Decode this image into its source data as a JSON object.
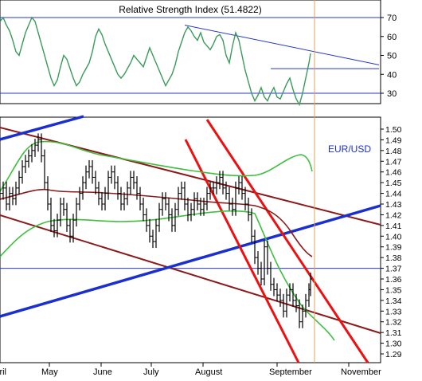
{
  "chart_data": [
    {
      "type": "line",
      "title": "Relative Strength Index (51.4822)",
      "y_ticks": [
        30,
        40,
        50,
        60,
        70
      ],
      "ylim": [
        24,
        76
      ],
      "reference_lines": [
        70,
        30
      ],
      "series_color": "#3a9a5a",
      "series": [
        {
          "x": [
            0,
            4,
            8,
            12,
            16,
            20,
            24,
            28,
            32,
            36,
            40,
            44,
            48,
            52,
            56,
            60,
            64,
            68,
            72,
            76,
            80,
            84,
            88,
            92,
            96,
            100,
            104,
            108,
            112,
            116,
            120,
            124,
            128,
            132,
            136,
            140,
            144,
            148,
            152,
            156,
            160,
            164,
            168,
            172,
            176,
            180,
            184,
            188,
            192,
            196,
            200,
            204,
            208,
            212,
            216,
            220,
            224,
            228,
            232,
            236,
            240,
            244,
            248,
            252,
            256,
            260,
            264,
            268,
            272,
            276,
            280,
            284,
            288,
            292,
            296,
            300,
            304,
            308,
            312,
            316,
            320,
            324,
            328,
            332,
            336,
            340,
            344,
            348,
            352,
            356,
            360,
            364,
            368,
            372,
            376,
            380,
            384,
            388,
            390
          ],
          "values": [
            68,
            70,
            66,
            63,
            58,
            52,
            50,
            56,
            62,
            66,
            70,
            68,
            62,
            56,
            50,
            44,
            38,
            34,
            37,
            44,
            50,
            48,
            43,
            38,
            34,
            36,
            40,
            43,
            46,
            52,
            60,
            64,
            61,
            56,
            52,
            48,
            44,
            40,
            38,
            40,
            43,
            46,
            50,
            48,
            46,
            44,
            49,
            54,
            50,
            46,
            42,
            38,
            34,
            37,
            40,
            45,
            52,
            57,
            62,
            65,
            63,
            60,
            58,
            62,
            57,
            55,
            53,
            56,
            60,
            61,
            58,
            50,
            46,
            55,
            62,
            58,
            50,
            42,
            36,
            30,
            26,
            29,
            33,
            28,
            26,
            30,
            33,
            28,
            27,
            31,
            35,
            38,
            32,
            27,
            24,
            30,
            38,
            46,
            51
          ]
        }
      ],
      "trendlines": [
        {
          "from": [
            232,
            66
          ],
          "to": [
            476,
            45
          ]
        },
        {
          "from": [
            340,
            43
          ],
          "to": [
            476,
            43
          ]
        }
      ]
    },
    {
      "type": "line",
      "label": "EUR/USD",
      "y_ticks": [
        1.29,
        1.3,
        1.31,
        1.32,
        1.33,
        1.34,
        1.35,
        1.36,
        1.37,
        1.38,
        1.39,
        1.4,
        1.41,
        1.42,
        1.43,
        1.44,
        1.45,
        1.46,
        1.47,
        1.48,
        1.49,
        1.5
      ],
      "ylim": [
        1.285,
        1.508
      ],
      "x_tick_labels": [
        "April",
        "May",
        "June",
        "July",
        "August",
        "September",
        "November"
      ],
      "horizontal_lines": [
        1.37
      ],
      "series": [
        {
          "name": "EUR/USD",
          "x": [
            0,
            4,
            8,
            12,
            16,
            20,
            24,
            28,
            32,
            36,
            40,
            44,
            48,
            52,
            56,
            60,
            64,
            68,
            72,
            76,
            80,
            84,
            88,
            92,
            96,
            100,
            104,
            108,
            112,
            116,
            120,
            124,
            128,
            132,
            136,
            140,
            144,
            148,
            152,
            156,
            160,
            164,
            168,
            172,
            176,
            180,
            184,
            188,
            192,
            196,
            200,
            204,
            208,
            212,
            216,
            220,
            224,
            228,
            232,
            236,
            240,
            244,
            248,
            252,
            256,
            260,
            264,
            268,
            272,
            276,
            280,
            284,
            288,
            292,
            296,
            300,
            304,
            308,
            312,
            316,
            320,
            324,
            328,
            332,
            336,
            340,
            344,
            348,
            352,
            356,
            360,
            364,
            368,
            372,
            376,
            380,
            384,
            388,
            390
          ],
          "values": [
            1.44,
            1.445,
            1.43,
            1.44,
            1.435,
            1.445,
            1.455,
            1.465,
            1.47,
            1.475,
            1.48,
            1.485,
            1.49,
            1.475,
            1.45,
            1.43,
            1.41,
            1.405,
            1.415,
            1.43,
            1.425,
            1.41,
            1.4,
            1.415,
            1.43,
            1.44,
            1.45,
            1.46,
            1.465,
            1.455,
            1.445,
            1.435,
            1.43,
            1.44,
            1.455,
            1.46,
            1.45,
            1.44,
            1.43,
            1.435,
            1.445,
            1.455,
            1.45,
            1.44,
            1.43,
            1.42,
            1.41,
            1.4,
            1.395,
            1.41,
            1.425,
            1.435,
            1.43,
            1.42,
            1.41,
            1.425,
            1.44,
            1.445,
            1.43,
            1.42,
            1.425,
            1.435,
            1.43,
            1.425,
            1.43,
            1.44,
            1.445,
            1.445,
            1.45,
            1.455,
            1.445,
            1.44,
            1.43,
            1.425,
            1.445,
            1.45,
            1.44,
            1.43,
            1.42,
            1.4,
            1.38,
            1.37,
            1.36,
            1.39,
            1.37,
            1.355,
            1.35,
            1.345,
            1.34,
            1.33,
            1.345,
            1.35,
            1.34,
            1.335,
            1.32,
            1.33,
            1.34,
            1.35,
            1.36
          ]
        }
      ]
    }
  ]
}
